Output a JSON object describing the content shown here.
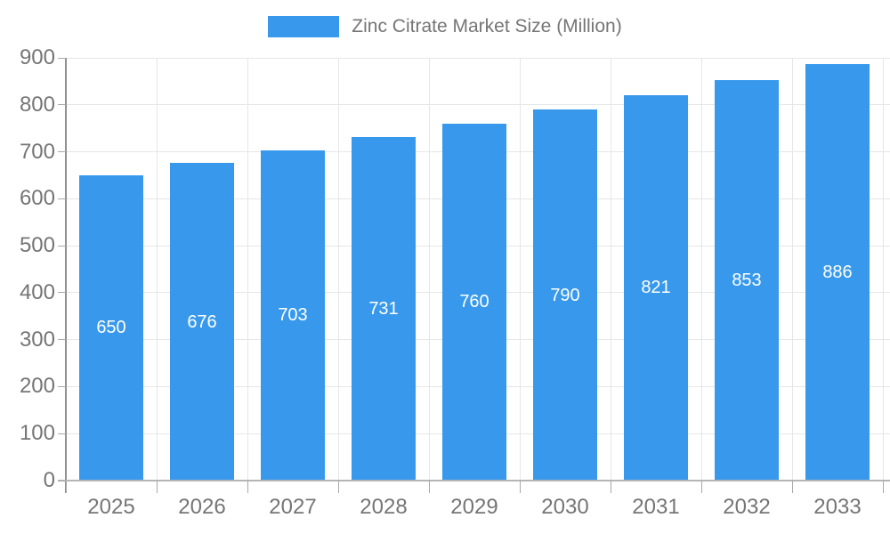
{
  "chart_data": {
    "type": "bar",
    "title": "Zinc Citrate Market Size (Million)",
    "legend": {
      "label": "Zinc Citrate Market Size (Million)",
      "position": "top-center"
    },
    "categories": [
      "2025",
      "2026",
      "2027",
      "2028",
      "2029",
      "2030",
      "2031",
      "2032",
      "2033"
    ],
    "values": [
      650,
      676,
      703,
      731,
      760,
      790,
      821,
      853,
      886
    ],
    "value_labels": {
      "placement": "inside-center",
      "color": "#ffffff"
    },
    "xlabel": "",
    "ylabel": "",
    "ylim": [
      0,
      900
    ],
    "ytick_step": 100,
    "grid": "horizontal and vertical category boundaries",
    "colors": {
      "bar": "#3899EC",
      "gridline": "#e6e6e6",
      "y_axis_line": "#909090",
      "x_axis_line": "#b5b5b5",
      "tick": "#a8a8a8",
      "axis_text": "#757575",
      "legend_text": "#757575",
      "background": "#ffffff"
    }
  }
}
